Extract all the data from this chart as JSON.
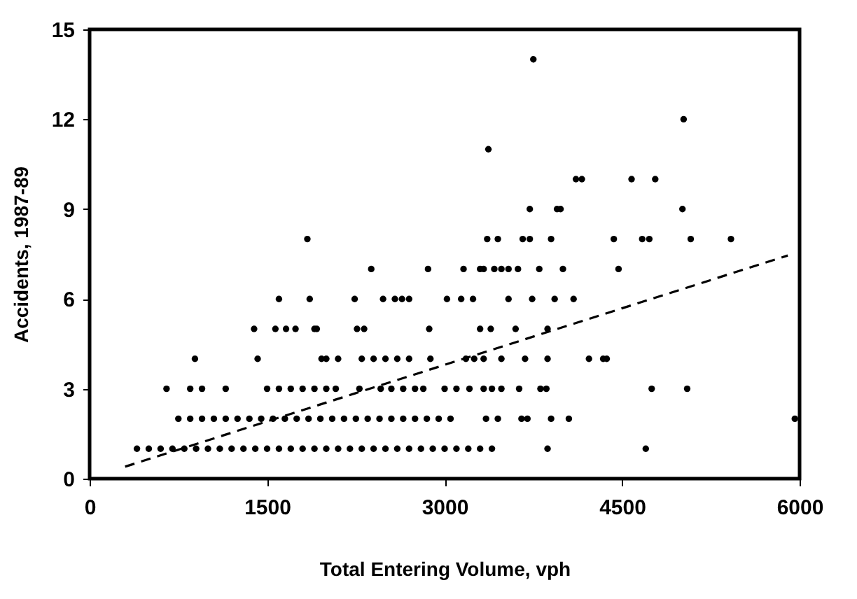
{
  "chart_data": {
    "type": "scatter",
    "xlabel": "Total Entering Volume, vph",
    "ylabel": "Accidents, 1987-89",
    "xlim": [
      0,
      6000
    ],
    "xticks": [
      0,
      1500,
      3000,
      4500,
      6000
    ],
    "ylim": [
      0,
      15
    ],
    "yticks": [
      0,
      3,
      6,
      9,
      12,
      15
    ],
    "grid": false,
    "series": [
      {
        "marker": "circle",
        "color": "#000000",
        "x": [
          400,
          500,
          600,
          700,
          800,
          900,
          1000,
          1100,
          1200,
          1300,
          1400,
          1500,
          1600,
          1700,
          1800,
          1900,
          2000,
          2100,
          2200,
          2300,
          2400,
          2500,
          2600,
          2700,
          2800,
          2900,
          3000,
          3100,
          3200,
          3300,
          3400,
          3870,
          4700,
          750,
          850,
          950,
          1050,
          1150,
          1250,
          1350,
          1450,
          1550,
          1650,
          1750,
          1850,
          1950,
          2050,
          2150,
          2250,
          2350,
          2450,
          2550,
          2650,
          2750,
          2850,
          2950,
          3050,
          3350,
          3450,
          3650,
          3700,
          3900,
          4050,
          5960,
          650,
          850,
          950,
          1150,
          1500,
          1600,
          1700,
          1800,
          1900,
          2000,
          2080,
          2280,
          2460,
          2550,
          2650,
          2750,
          2820,
          3000,
          3100,
          3210,
          3330,
          3400,
          3480,
          3630,
          3810,
          3860,
          4750,
          5050,
          890,
          1420,
          1960,
          2000,
          2100,
          2300,
          2400,
          2500,
          2600,
          2700,
          2880,
          3180,
          3250,
          3330,
          3480,
          3680,
          3870,
          4220,
          4340,
          4370,
          1390,
          1570,
          1660,
          1740,
          1900,
          1920,
          2260,
          2320,
          2870,
          3300,
          3390,
          3600,
          3870,
          1600,
          1860,
          2240,
          2480,
          2580,
          2640,
          2700,
          3020,
          3140,
          3240,
          3540,
          3740,
          3930,
          4090,
          2380,
          2860,
          3160,
          3300,
          3330,
          3420,
          3480,
          3540,
          3620,
          3800,
          4000,
          4470,
          1840,
          3360,
          3450,
          3660,
          3720,
          3900,
          4430,
          4670,
          4730,
          5080,
          5420,
          3720,
          3950,
          3980,
          5010,
          4110,
          4160,
          4580,
          4780,
          3370,
          5020,
          3750
        ],
        "values": [
          1,
          1,
          1,
          1,
          1,
          1,
          1,
          1,
          1,
          1,
          1,
          1,
          1,
          1,
          1,
          1,
          1,
          1,
          1,
          1,
          1,
          1,
          1,
          1,
          1,
          1,
          1,
          1,
          1,
          1,
          1,
          1,
          1,
          2,
          2,
          2,
          2,
          2,
          2,
          2,
          2,
          2,
          2,
          2,
          2,
          2,
          2,
          2,
          2,
          2,
          2,
          2,
          2,
          2,
          2,
          2,
          2,
          2,
          2,
          2,
          2,
          2,
          2,
          2,
          3,
          3,
          3,
          3,
          3,
          3,
          3,
          3,
          3,
          3,
          3,
          3,
          3,
          3,
          3,
          3,
          3,
          3,
          3,
          3,
          3,
          3,
          3,
          3,
          3,
          3,
          3,
          3,
          4,
          4,
          4,
          4,
          4,
          4,
          4,
          4,
          4,
          4,
          4,
          4,
          4,
          4,
          4,
          4,
          4,
          4,
          4,
          4,
          5,
          5,
          5,
          5,
          5,
          5,
          5,
          5,
          5,
          5,
          5,
          5,
          5,
          6,
          6,
          6,
          6,
          6,
          6,
          6,
          6,
          6,
          6,
          6,
          6,
          6,
          6,
          7,
          7,
          7,
          7,
          7,
          7,
          7,
          7,
          7,
          7,
          7,
          7,
          8,
          8,
          8,
          8,
          8,
          8,
          8,
          8,
          8,
          8,
          8,
          9,
          9,
          9,
          9,
          10,
          10,
          10,
          10,
          11,
          12,
          14
        ]
      },
      {
        "type": "line",
        "color": "#000000",
        "line_style": "dashed",
        "x": [
          300,
          5900
        ],
        "values": [
          0.4,
          7.45
        ]
      }
    ]
  }
}
